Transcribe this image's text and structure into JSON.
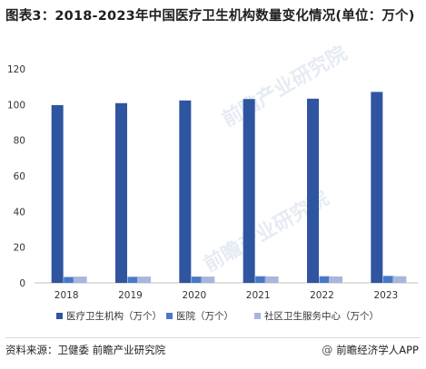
{
  "title": "图表3：2018-2023年中国医疗卫生机构数量变化情况(单位：万个)",
  "footer": {
    "source": "资料来源：卫健委 前瞻产业研究院",
    "brand_symbol": "@",
    "brand": "前瞻经济学人APP"
  },
  "watermark": [
    "前瞻产业研究院",
    "前瞻产业研究院"
  ],
  "colors": {
    "series1": "#2f55a0",
    "series2": "#4a78c8",
    "series3": "#a7b6da",
    "grid": "#e0e0e0",
    "axis": "#bfbfbf"
  },
  "chart_data": {
    "type": "bar",
    "title": "",
    "xlabel": "",
    "ylabel": "",
    "categories": [
      "2018",
      "2019",
      "2020",
      "2021",
      "2022",
      "2023"
    ],
    "ylim": [
      0,
      120
    ],
    "yticks": [
      0,
      20,
      40,
      60,
      80,
      100,
      120
    ],
    "grid": false,
    "legend": "bottom",
    "series": [
      {
        "name": "医疗卫生机构（万个）",
        "values": [
          99.7,
          100.8,
          102.3,
          103.1,
          103.3,
          107.1
        ]
      },
      {
        "name": "医院（万个）",
        "values": [
          3.3,
          3.4,
          3.5,
          3.7,
          3.7,
          3.9
        ]
      },
      {
        "name": "社区卫生服务中心（万个）",
        "values": [
          3.5,
          3.5,
          3.5,
          3.6,
          3.6,
          3.7
        ]
      }
    ]
  }
}
